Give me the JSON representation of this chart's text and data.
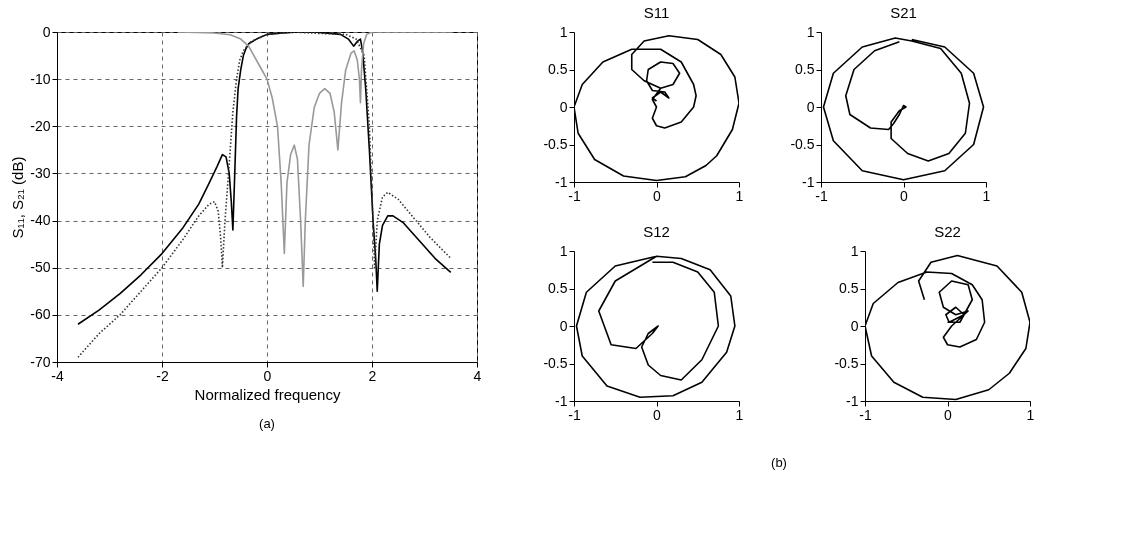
{
  "chart_data": [
    {
      "type": "line",
      "xlabel": "Normalized frequency",
      "ylabel": "S₁₁, S₂₁ (dB)",
      "xlim": [
        -4,
        4
      ],
      "xticks": [
        -4,
        -2,
        0,
        2,
        4
      ],
      "ylim": [
        -70,
        0
      ],
      "yticks": [
        -70,
        -60,
        -50,
        -40,
        -30,
        -20,
        -10,
        0
      ],
      "grid": true,
      "annotations": [
        "(a)"
      ],
      "series": [
        {
          "color": "#000000",
          "line_style": "solid",
          "x": [
            -3.6,
            -3.2,
            -2.8,
            -2.4,
            -2.0,
            -1.6,
            -1.3,
            -1.1,
            -0.95,
            -0.85,
            -0.78,
            -0.72,
            -0.68,
            -0.65,
            -0.62,
            -0.58,
            -0.55,
            -0.5,
            -0.45,
            -0.4,
            -0.35,
            -0.2,
            0.0,
            0.3,
            0.6,
            0.9,
            1.2,
            1.4,
            1.55,
            1.65,
            1.72,
            1.78,
            1.82,
            1.88,
            1.95,
            2.02,
            2.07,
            2.1,
            2.14,
            2.2,
            2.3,
            2.4,
            2.6,
            2.8,
            3.0,
            3.2,
            3.5
          ],
          "values": [
            -62,
            -59,
            -55.5,
            -51.5,
            -47,
            -41.5,
            -36.5,
            -32,
            -28.5,
            -26,
            -26.5,
            -30,
            -36,
            -42,
            -32,
            -18,
            -12,
            -8,
            -5,
            -3.5,
            -2.5,
            -1.5,
            -0.5,
            -0.2,
            0,
            0,
            -0.3,
            -0.5,
            -1.5,
            -3,
            -2,
            -1.5,
            -4,
            -12,
            -25,
            -40,
            -48,
            -55,
            -45,
            -41,
            -39,
            -39,
            -40.5,
            -43,
            -45.5,
            -48,
            -51
          ]
        },
        {
          "color": "#333333",
          "line_style": "dotted",
          "x": [
            -3.6,
            -3.2,
            -2.8,
            -2.4,
            -2.0,
            -1.6,
            -1.3,
            -1.1,
            -1.0,
            -0.93,
            -0.88,
            -0.85,
            -0.8,
            -0.72,
            -0.65,
            -0.58,
            -0.52,
            -0.45,
            -0.38,
            -0.3,
            -0.2,
            0.0,
            0.5,
            1.0,
            1.5,
            1.7,
            1.85,
            1.95,
            2.02,
            2.05,
            2.1,
            2.2,
            2.3,
            2.5,
            2.8,
            3.1,
            3.5
          ],
          "values": [
            -69,
            -64,
            -60,
            -55,
            -50,
            -44,
            -39,
            -36.5,
            -36,
            -38,
            -44,
            -50,
            -40,
            -28,
            -17,
            -10,
            -6,
            -4,
            -3,
            -2,
            -1.5,
            -0.5,
            0,
            -0.3,
            -0.5,
            -1.5,
            -5,
            -20,
            -40,
            -50,
            -40,
            -35,
            -34,
            -35.5,
            -39.5,
            -43.5,
            -48
          ]
        },
        {
          "color": "#999999",
          "line_style": "solid",
          "x": [
            -1.7,
            -1.0,
            -0.7,
            -0.5,
            -0.35,
            -0.25,
            -0.15,
            0.0,
            0.1,
            0.2,
            0.27,
            0.33,
            0.38,
            0.45,
            0.52,
            0.58,
            0.64,
            0.69,
            0.73,
            0.8,
            0.9,
            1.0,
            1.1,
            1.2,
            1.28,
            1.35,
            1.42,
            1.5,
            1.6,
            1.66,
            1.72,
            1.76,
            1.78,
            1.8,
            1.84,
            1.9,
            2.0,
            2.5,
            3.0,
            3.5
          ],
          "values": [
            0,
            -0.2,
            -0.6,
            -1.5,
            -3,
            -5,
            -7,
            -10,
            -14,
            -20,
            -32,
            -47,
            -32,
            -26,
            -24,
            -27,
            -40,
            -54,
            -40,
            -24,
            -16,
            -13,
            -12,
            -13,
            -17,
            -25,
            -15,
            -8,
            -4.5,
            -4,
            -6,
            -10,
            -15,
            -8,
            -2.5,
            -0.5,
            0,
            0,
            0,
            0
          ]
        }
      ]
    },
    {
      "type": "line",
      "title": "S11",
      "xlim": [
        -1,
        1
      ],
      "xticks": [
        -1,
        0,
        1
      ],
      "ylim": [
        -1,
        1
      ],
      "yticks": [
        -1,
        -0.5,
        0,
        0.5,
        1
      ],
      "grid": false,
      "series": [
        {
          "color": "#000000",
          "line_style": "solid",
          "x": [
            0.0,
            -0.05,
            0.05,
            0.15,
            0.1,
            -0.05,
            -0.12,
            -0.1,
            0.05,
            0.2,
            0.28,
            0.2,
            0.05,
            -0.05,
            0.0,
            -0.05,
            0.0,
            0.1,
            0.3,
            0.45,
            0.48,
            0.45,
            0.3,
            0.05,
            -0.3,
            -0.65,
            -0.9,
            -1.0,
            -0.95,
            -0.75,
            -0.4,
            0.0,
            0.35,
            0.6,
            0.73,
            0.92,
            1.0,
            0.95,
            0.78,
            0.5,
            0.15,
            -0.15,
            -0.3,
            -0.3,
            -0.15,
            0.05,
            0.2
          ],
          "values": [
            0.08,
            0.12,
            0.2,
            0.12,
            0.2,
            0.22,
            0.35,
            0.5,
            0.6,
            0.58,
            0.45,
            0.3,
            0.25,
            0.1,
            0.0,
            -0.15,
            -0.25,
            -0.28,
            -0.2,
            0.0,
            0.15,
            0.3,
            0.6,
            0.77,
            0.77,
            0.6,
            0.3,
            0.0,
            -0.35,
            -0.7,
            -0.92,
            -0.98,
            -0.93,
            -0.78,
            -0.65,
            -0.3,
            0.05,
            0.4,
            0.7,
            0.9,
            0.95,
            0.88,
            0.7,
            0.5,
            0.35,
            0.25,
            0.3
          ]
        }
      ]
    },
    {
      "type": "line",
      "title": "S21",
      "xlim": [
        -1,
        1
      ],
      "xticks": [
        -1,
        0,
        1
      ],
      "ylim": [
        -1,
        1
      ],
      "yticks": [
        -1,
        -0.5,
        0,
        0.5,
        1
      ],
      "grid": false,
      "series": [
        {
          "color": "#000000",
          "line_style": "solid",
          "x": [
            0.1,
            0.5,
            0.85,
            0.97,
            0.85,
            0.5,
            0.0,
            -0.5,
            -0.85,
            -0.97,
            -0.85,
            -0.5,
            -0.1,
            0.1,
            0.45,
            0.7,
            0.8,
            0.75,
            0.55,
            0.3,
            0.05,
            -0.15,
            -0.15,
            -0.05,
            0.03,
            0.0,
            -0.05,
            -0.12,
            -0.18,
            -0.4,
            -0.65,
            -0.7,
            -0.6,
            -0.35,
            -0.05
          ],
          "values": [
            0.9,
            0.8,
            0.45,
            0.0,
            -0.5,
            -0.85,
            -0.97,
            -0.85,
            -0.45,
            0.0,
            0.45,
            0.8,
            0.92,
            0.88,
            0.78,
            0.45,
            0.05,
            -0.35,
            -0.62,
            -0.72,
            -0.62,
            -0.42,
            -0.2,
            -0.05,
            0.0,
            0.02,
            -0.1,
            -0.22,
            -0.3,
            -0.28,
            -0.1,
            0.15,
            0.5,
            0.75,
            0.87
          ]
        }
      ]
    },
    {
      "type": "line",
      "title": "S12",
      "xlim": [
        -1,
        1
      ],
      "xticks": [
        -1,
        0,
        1
      ],
      "ylim": [
        -1,
        1
      ],
      "yticks": [
        -1,
        -0.5,
        0,
        0.5,
        1
      ],
      "grid": false,
      "annotations": [
        "(b)"
      ],
      "series": [
        {
          "color": "#000000",
          "line_style": "solid",
          "x": [
            0.0,
            -0.5,
            -0.85,
            -0.97,
            -0.9,
            -0.6,
            -0.2,
            0.2,
            0.55,
            0.85,
            0.95,
            0.9,
            0.65,
            0.3,
            0.0,
            -0.5,
            -0.7,
            -0.55,
            -0.25,
            -0.05,
            0.02,
            -0.1,
            -0.18,
            -0.1,
            0.05,
            0.3,
            0.55,
            0.75,
            0.7,
            0.5,
            0.2,
            -0.05
          ],
          "values": [
            0.93,
            0.8,
            0.45,
            0.0,
            -0.4,
            -0.8,
            -0.95,
            -0.93,
            -0.75,
            -0.35,
            0.0,
            0.4,
            0.75,
            0.9,
            0.93,
            0.6,
            0.2,
            -0.25,
            -0.3,
            -0.1,
            0.0,
            -0.1,
            -0.28,
            -0.52,
            -0.66,
            -0.72,
            -0.45,
            0.0,
            0.45,
            0.72,
            0.85,
            0.85
          ]
        }
      ]
    },
    {
      "type": "line",
      "title": "S22",
      "xlim": [
        -1,
        1
      ],
      "xticks": [
        -1,
        0,
        1
      ],
      "ylim": [
        -1,
        1
      ],
      "yticks": [
        -1,
        -0.5,
        0,
        0.5,
        1
      ],
      "grid": false,
      "series": [
        {
          "color": "#000000",
          "line_style": "solid",
          "x": [
            0.0,
            0.15,
            0.2,
            0.1,
            -0.02,
            0.02,
            0.2,
            0.3,
            0.25,
            0.05,
            -0.1,
            -0.05,
            0.1,
            0.25,
            0.05,
            -0.05,
            0.0,
            0.15,
            0.35,
            0.45,
            0.42,
            0.3,
            0.05,
            -0.25,
            -0.6,
            -0.9,
            -1.0,
            -0.92,
            -0.65,
            -0.3,
            0.1,
            0.5,
            0.75,
            0.95,
            1.0,
            0.9,
            0.6,
            0.12,
            -0.2,
            -0.35,
            -0.28
          ],
          "values": [
            0.05,
            0.05,
            0.15,
            0.25,
            0.15,
            0.05,
            0.15,
            0.35,
            0.55,
            0.6,
            0.45,
            0.25,
            0.15,
            0.2,
            0.0,
            -0.15,
            -0.25,
            -0.28,
            -0.18,
            0.05,
            0.35,
            0.55,
            0.7,
            0.72,
            0.58,
            0.3,
            0.0,
            -0.4,
            -0.75,
            -0.95,
            -0.98,
            -0.85,
            -0.63,
            -0.3,
            0.05,
            0.45,
            0.8,
            0.94,
            0.85,
            0.6,
            0.35
          ]
        }
      ]
    }
  ]
}
